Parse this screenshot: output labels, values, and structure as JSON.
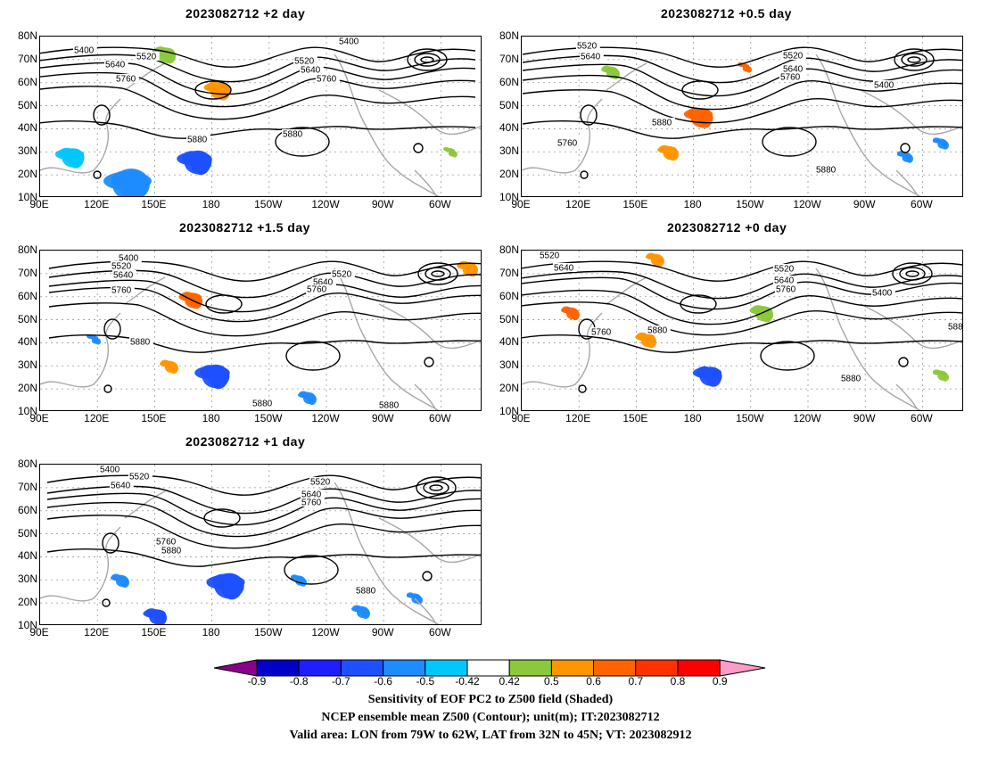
{
  "colors": {
    "contour": "#000000",
    "coast": "#a8a8a8",
    "grid": "#9a9a9a",
    "neg_shades": [
      "#8b008b",
      "#0000c8",
      "#1e1eff",
      "#1e50ff",
      "#1e8cff",
      "#00c8ff"
    ],
    "pos_shades": [
      "#8cc83c",
      "#ff9600",
      "#ff6400",
      "#ff3200",
      "#ff0000",
      "#ff9bc8"
    ]
  },
  "lat_labels": [
    "80N",
    "70N",
    "60N",
    "50N",
    "40N",
    "30N",
    "20N",
    "10N"
  ],
  "lon_labels": [
    "90E",
    "120E",
    "150E",
    "180",
    "150W",
    "120W",
    "90W",
    "60W"
  ],
  "panels": [
    {
      "id": "p2",
      "title": "2023082712 +2 day",
      "contour_labels": [
        {
          "text": "5400"
        },
        {
          "text": "5520"
        },
        {
          "text": "5640"
        },
        {
          "text": "5760"
        },
        {
          "text": "5520"
        },
        {
          "text": "5640"
        },
        {
          "text": "5760"
        },
        {
          "text": "5400"
        },
        {
          "text": "5880"
        },
        {
          "text": "5880"
        }
      ]
    },
    {
      "id": "p05",
      "title": "2023082712 +0.5 day",
      "contour_labels": [
        {
          "text": "5520"
        },
        {
          "text": "5640"
        },
        {
          "text": "5520"
        },
        {
          "text": "5640"
        },
        {
          "text": "5760"
        },
        {
          "text": "5400"
        },
        {
          "text": "5880"
        },
        {
          "text": "5760"
        },
        {
          "text": "5880"
        }
      ]
    },
    {
      "id": "p15",
      "title": "2023082712 +1.5 day",
      "contour_labels": [
        {
          "text": "5400"
        },
        {
          "text": "5520"
        },
        {
          "text": "5640"
        },
        {
          "text": "5760"
        },
        {
          "text": "5520"
        },
        {
          "text": "5640"
        },
        {
          "text": "5760"
        },
        {
          "text": "5880"
        },
        {
          "text": "5880"
        },
        {
          "text": "5880"
        }
      ]
    },
    {
      "id": "p0",
      "title": "2023082712 +0 day",
      "contour_labels": [
        {
          "text": "5520"
        },
        {
          "text": "5640"
        },
        {
          "text": "5520"
        },
        {
          "text": "5640"
        },
        {
          "text": "5760"
        },
        {
          "text": "5400"
        },
        {
          "text": "5760"
        },
        {
          "text": "5880"
        },
        {
          "text": "5880"
        },
        {
          "text": "588"
        }
      ]
    },
    {
      "id": "p1",
      "title": "2023082712 +1 day",
      "contour_labels": [
        {
          "text": "5400"
        },
        {
          "text": "5520"
        },
        {
          "text": "5640"
        },
        {
          "text": "5520"
        },
        {
          "text": "5640"
        },
        {
          "text": "5760"
        },
        {
          "text": "5760"
        },
        {
          "text": "5880"
        },
        {
          "text": "5880"
        }
      ]
    }
  ],
  "colorbar": {
    "labels": [
      "-0.9",
      "-0.8",
      "-0.7",
      "-0.6",
      "-0.5",
      "-0.42",
      "0.42",
      "0.5",
      "0.6",
      "0.7",
      "0.8",
      "0.9"
    ]
  },
  "footer": {
    "line1": "Sensitivity of EOF PC2 to Z500 field (Shaded)",
    "line2": "NCEP ensemble mean Z500 (Contour); unit(m); IT:2023082712",
    "line3": "Valid area: LON from 79W to 62W, LAT from 32N to 45N; VT: 2023082912"
  }
}
